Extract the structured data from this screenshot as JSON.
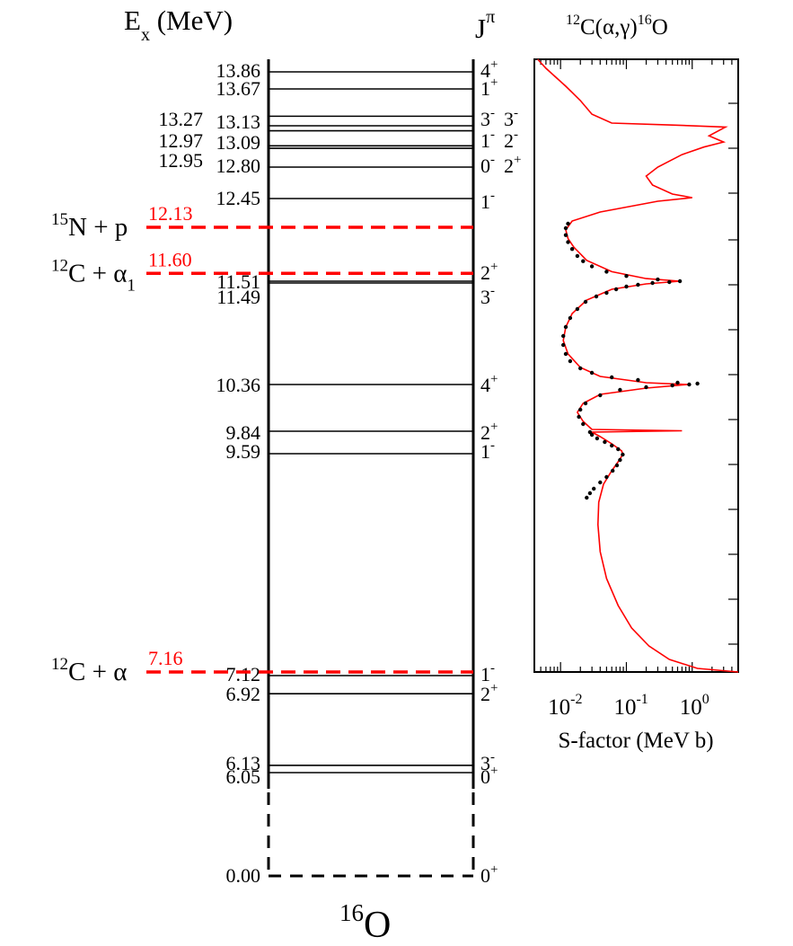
{
  "header": {
    "energy_axis": "E",
    "energy_axis_sub": "x",
    "energy_axis_unit": " (MeV)",
    "spin_axis": "J",
    "spin_axis_sup": "π",
    "reaction_mass12": "12",
    "reaction_body": "C(α,γ)",
    "reaction_mass16": "16",
    "reaction_end": "O"
  },
  "nucleus": {
    "mass": "16",
    "symbol": "O"
  },
  "colors": {
    "threshold": "#ff0000",
    "levels": "#000000",
    "curve": "#ff0000",
    "points": "#000000"
  },
  "levels": [
    {
      "energy": 13.86,
      "label": "13.86",
      "jpi": "4",
      "parity": "+"
    },
    {
      "energy": 13.67,
      "label": "13.67",
      "jpi": "1",
      "parity": "+"
    },
    {
      "energy": 13.27,
      "label": "13.27",
      "jpi": "3",
      "parity": "-"
    },
    {
      "energy": 13.13,
      "label": "13.13",
      "jpi": "3",
      "parity": "-"
    },
    {
      "energy": 12.97,
      "label": "12.97",
      "jpi": "1",
      "parity": "-"
    },
    {
      "energy": 13.09,
      "label": "13.09",
      "jpi": "2",
      "parity": "-"
    },
    {
      "energy": 12.95,
      "label": "12.95",
      "jpi": "0",
      "parity": "-"
    },
    {
      "energy": 12.8,
      "label": "12.80",
      "jpi": "2",
      "parity": "+"
    },
    {
      "energy": 12.45,
      "label": "12.45",
      "jpi": "1",
      "parity": "-"
    },
    {
      "energy": 11.51,
      "label": "11.51",
      "jpi": "2",
      "parity": "+"
    },
    {
      "energy": 11.49,
      "label": "11.49",
      "jpi": "3",
      "parity": "-"
    },
    {
      "energy": 10.36,
      "label": "10.36",
      "jpi": "4",
      "parity": "+"
    },
    {
      "energy": 9.84,
      "label": "9.84",
      "jpi": "2",
      "parity": "+"
    },
    {
      "energy": 9.59,
      "label": "9.59",
      "jpi": "1",
      "parity": "-"
    },
    {
      "energy": 7.12,
      "label": "7.12",
      "jpi": "1",
      "parity": "-"
    },
    {
      "energy": 6.92,
      "label": "6.92",
      "jpi": "2",
      "parity": "+"
    },
    {
      "energy": 6.13,
      "label": "6.13",
      "jpi": "3",
      "parity": "-"
    },
    {
      "energy": 6.05,
      "label": "6.05",
      "jpi": "0",
      "parity": "+"
    },
    {
      "energy": 0.0,
      "label": "0.00",
      "jpi": "0",
      "parity": "+"
    }
  ],
  "thresholds": [
    {
      "energy": 12.13,
      "value": "12.13",
      "mass": "15",
      "channel": "N + p",
      "sub": ""
    },
    {
      "energy": 11.6,
      "value": "11.60",
      "mass": "12",
      "channel": "C + α",
      "sub": "1"
    },
    {
      "energy": 7.16,
      "value": "7.16",
      "mass": "12",
      "channel": "C + α",
      "sub": ""
    }
  ],
  "chart_data": {
    "type": "line",
    "title": "12C(α,γ)16O",
    "xlabel": "S-factor (MeV b)",
    "xscale": "log",
    "xlim": [
      0.004,
      5
    ],
    "xticks": [
      {
        "base": "10",
        "exp": "-2",
        "value": 0.01
      },
      {
        "base": "10",
        "exp": "-1",
        "value": 0.1
      },
      {
        "base": "10",
        "exp": "0",
        "value": 1
      }
    ],
    "ylabel": "E_x (MeV)",
    "ylim": [
      7.16,
      14.0
    ],
    "series": [
      {
        "kind": "R-matrix fit curve",
        "points": [
          [
            5.0,
            7.16
          ],
          [
            1.2,
            7.2
          ],
          [
            0.45,
            7.3
          ],
          [
            0.22,
            7.45
          ],
          [
            0.12,
            7.65
          ],
          [
            0.075,
            7.9
          ],
          [
            0.05,
            8.2
          ],
          [
            0.04,
            8.5
          ],
          [
            0.037,
            8.8
          ],
          [
            0.038,
            9.05
          ],
          [
            0.045,
            9.25
          ],
          [
            0.06,
            9.4
          ],
          [
            0.075,
            9.5
          ],
          [
            0.088,
            9.58
          ],
          [
            0.085,
            9.62
          ],
          [
            0.06,
            9.7
          ],
          [
            0.04,
            9.78
          ],
          [
            0.03,
            9.83
          ],
          [
            0.7,
            9.845
          ],
          [
            0.03,
            9.86
          ],
          [
            0.022,
            9.95
          ],
          [
            0.018,
            10.05
          ],
          [
            0.022,
            10.15
          ],
          [
            0.04,
            10.25
          ],
          [
            0.2,
            10.32
          ],
          [
            0.85,
            10.36
          ],
          [
            0.2,
            10.38
          ],
          [
            0.04,
            10.45
          ],
          [
            0.02,
            10.55
          ],
          [
            0.013,
            10.7
          ],
          [
            0.011,
            10.85
          ],
          [
            0.012,
            11.0
          ],
          [
            0.015,
            11.15
          ],
          [
            0.025,
            11.3
          ],
          [
            0.06,
            11.42
          ],
          [
            0.2,
            11.48
          ],
          [
            0.65,
            11.51
          ],
          [
            0.2,
            11.54
          ],
          [
            0.06,
            11.62
          ],
          [
            0.025,
            11.75
          ],
          [
            0.016,
            11.9
          ],
          [
            0.013,
            12.0
          ],
          [
            0.012,
            12.1
          ],
          [
            0.015,
            12.2
          ],
          [
            0.04,
            12.3
          ],
          [
            0.3,
            12.42
          ],
          [
            1.0,
            12.46
          ],
          [
            0.5,
            12.5
          ],
          [
            0.25,
            12.6
          ],
          [
            0.2,
            12.7
          ],
          [
            0.3,
            12.8
          ],
          [
            0.7,
            12.9
          ],
          [
            1.5,
            12.96
          ],
          [
            3.0,
            13.0
          ],
          [
            1.8,
            13.05
          ],
          [
            3.2,
            13.12
          ],
          [
            0.5,
            13.14
          ],
          [
            0.06,
            13.17
          ],
          [
            0.03,
            13.3
          ],
          [
            0.02,
            13.5
          ],
          [
            0.012,
            13.7
          ],
          [
            0.006,
            13.9
          ],
          [
            0.0045,
            14.0
          ]
        ]
      },
      {
        "kind": "experimental data",
        "points": [
          [
            0.025,
            9.1
          ],
          [
            0.028,
            9.15
          ],
          [
            0.032,
            9.2
          ],
          [
            0.04,
            9.27
          ],
          [
            0.05,
            9.33
          ],
          [
            0.062,
            9.4
          ],
          [
            0.072,
            9.46
          ],
          [
            0.08,
            9.52
          ],
          [
            0.088,
            9.58
          ],
          [
            0.075,
            9.64
          ],
          [
            0.06,
            9.68
          ],
          [
            0.047,
            9.72
          ],
          [
            0.036,
            9.76
          ],
          [
            0.03,
            9.8
          ],
          [
            0.028,
            9.83
          ],
          [
            0.022,
            9.92
          ],
          [
            0.019,
            10.0
          ],
          [
            0.02,
            10.08
          ],
          [
            0.024,
            10.15
          ],
          [
            0.04,
            10.24
          ],
          [
            0.08,
            10.3
          ],
          [
            0.2,
            10.33
          ],
          [
            0.5,
            10.35
          ],
          [
            0.9,
            10.36
          ],
          [
            1.2,
            10.37
          ],
          [
            0.6,
            10.38
          ],
          [
            0.15,
            10.41
          ],
          [
            0.06,
            10.44
          ],
          [
            0.03,
            10.49
          ],
          [
            0.02,
            10.54
          ],
          [
            0.014,
            10.62
          ],
          [
            0.012,
            10.7
          ],
          [
            0.011,
            10.8
          ],
          [
            0.011,
            10.9
          ],
          [
            0.012,
            11.0
          ],
          [
            0.014,
            11.1
          ],
          [
            0.018,
            11.2
          ],
          [
            0.024,
            11.28
          ],
          [
            0.035,
            11.34
          ],
          [
            0.05,
            11.38
          ],
          [
            0.07,
            11.42
          ],
          [
            0.1,
            11.45
          ],
          [
            0.15,
            11.47
          ],
          [
            0.25,
            11.49
          ],
          [
            0.45,
            11.5
          ],
          [
            0.65,
            11.51
          ],
          [
            0.3,
            11.53
          ],
          [
            0.1,
            11.57
          ],
          [
            0.05,
            11.62
          ],
          [
            0.03,
            11.68
          ],
          [
            0.022,
            11.74
          ],
          [
            0.018,
            11.8
          ],
          [
            0.015,
            11.88
          ],
          [
            0.013,
            11.96
          ],
          [
            0.012,
            12.04
          ],
          [
            0.012,
            12.12
          ],
          [
            0.013,
            12.17
          ]
        ]
      }
    ]
  }
}
